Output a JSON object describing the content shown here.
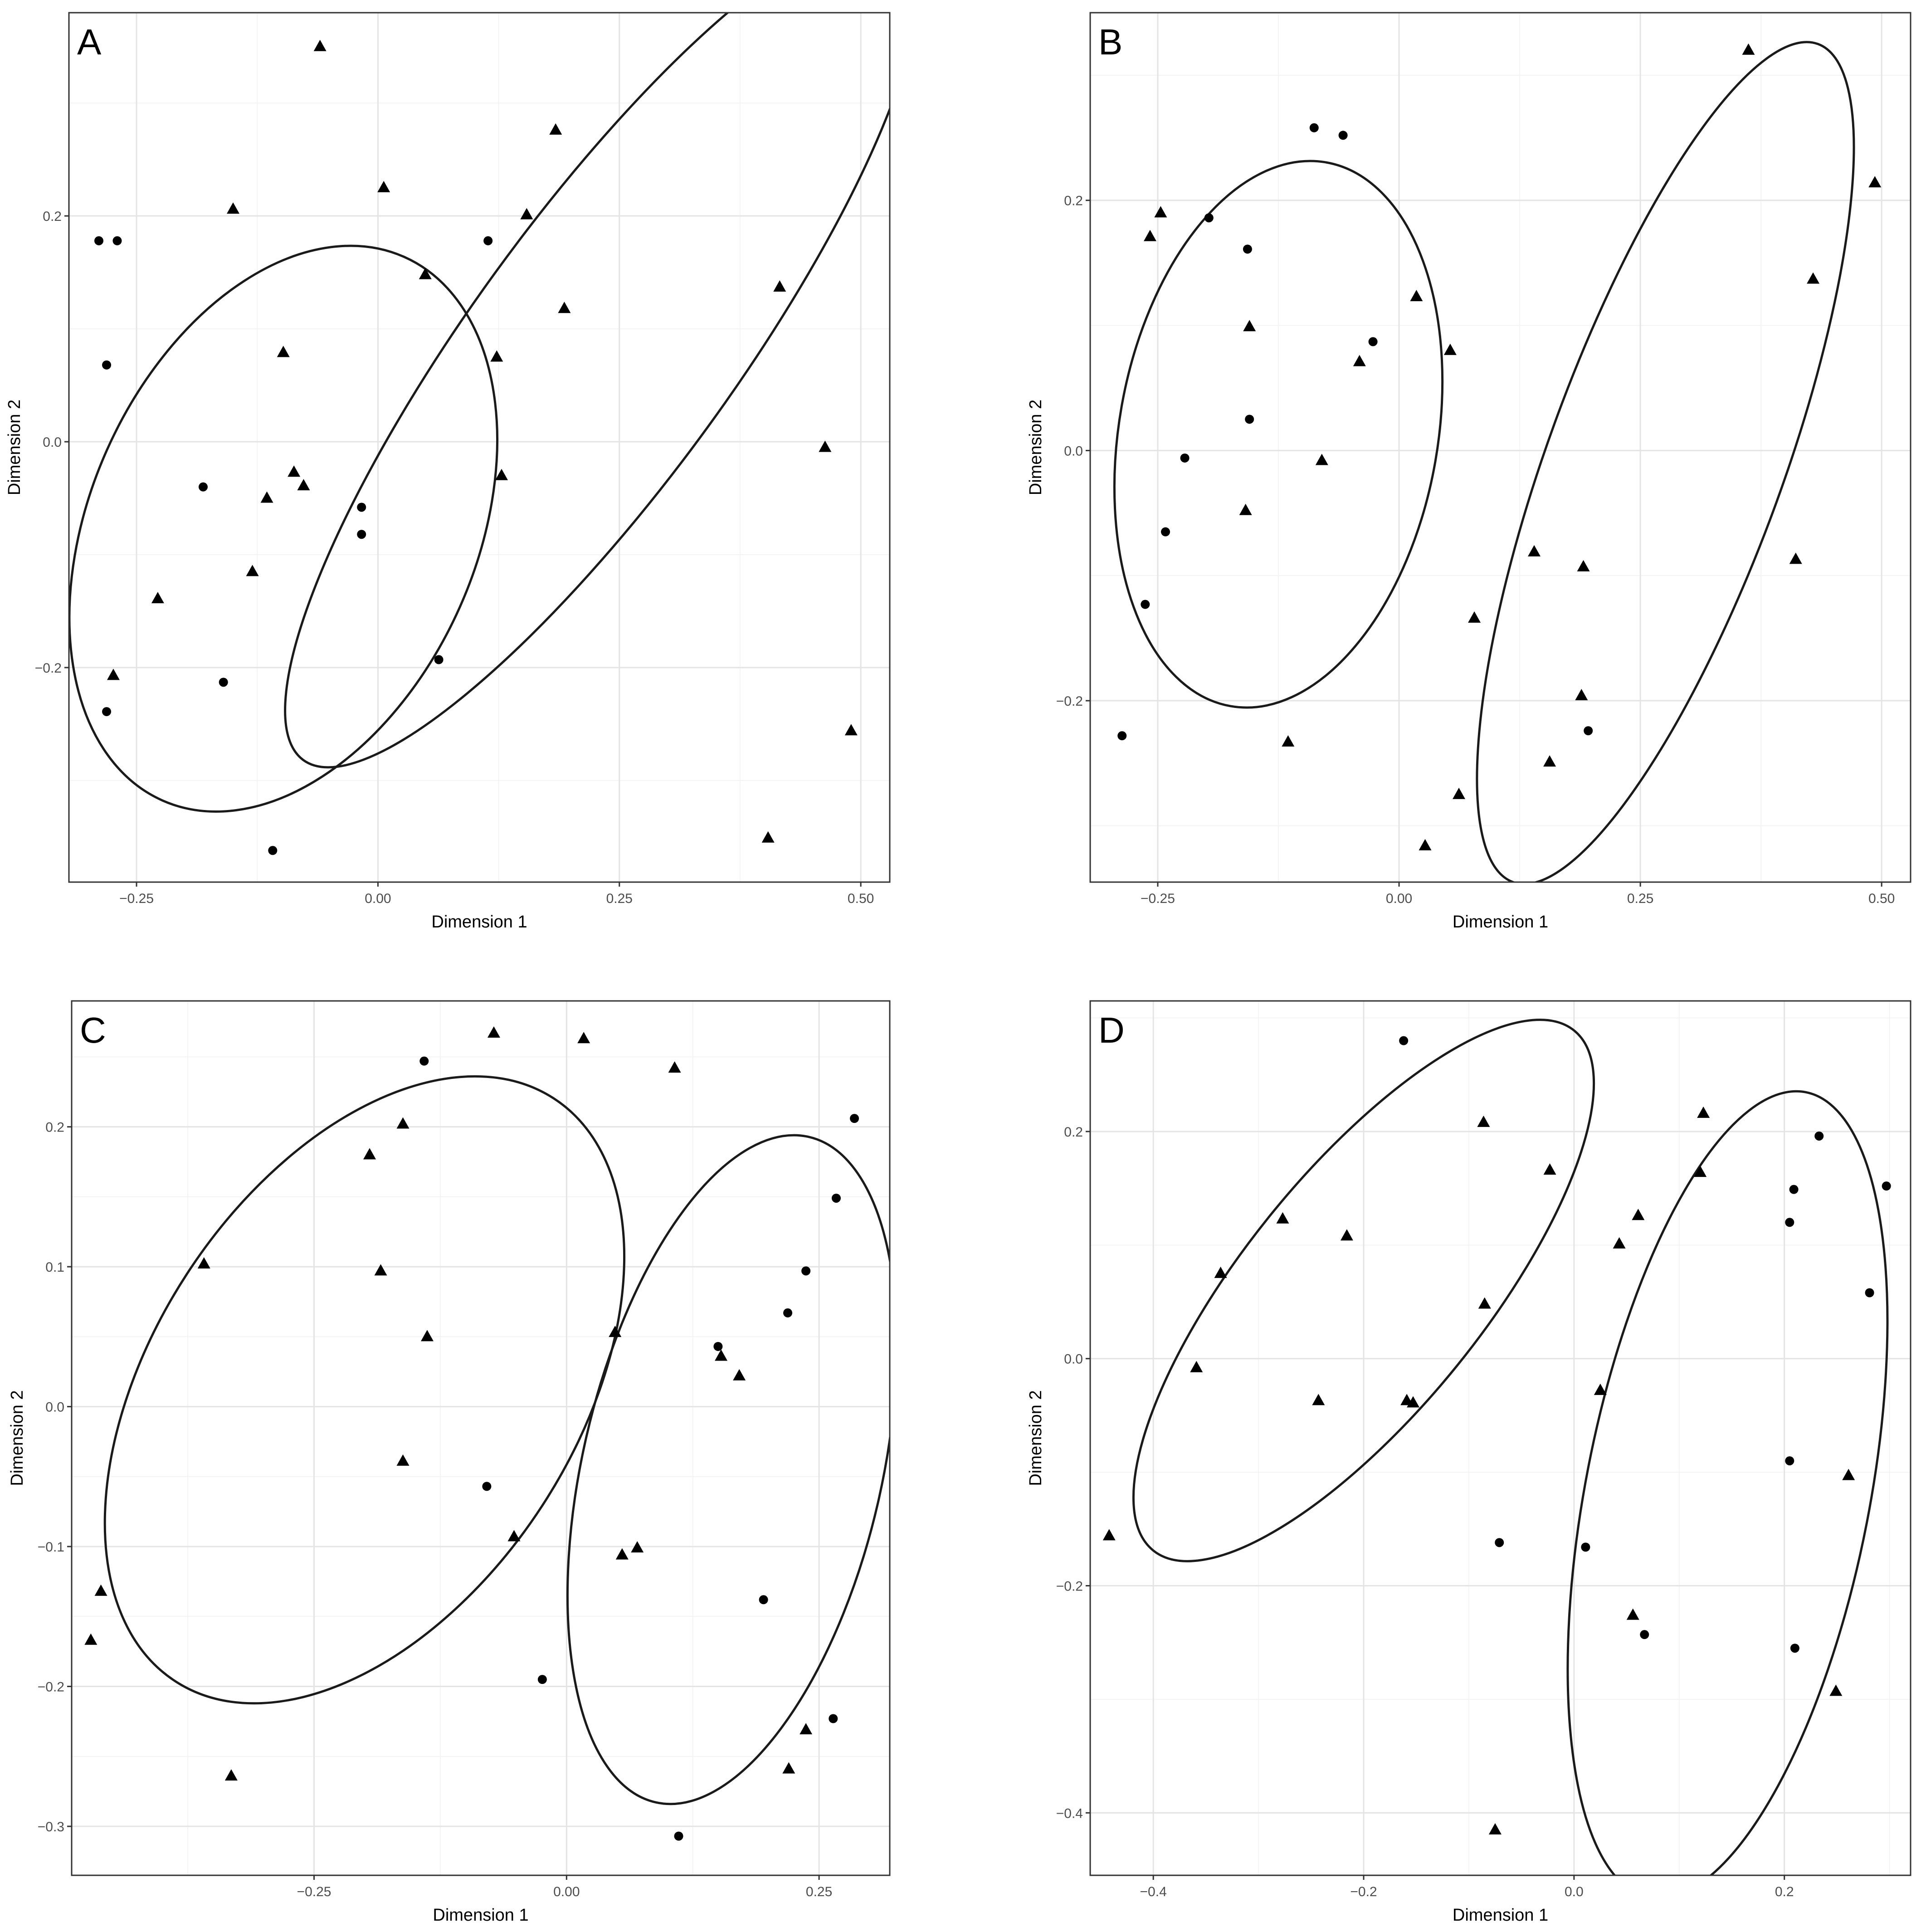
{
  "colors": {
    "ink": "#000000",
    "grid": "#e4e4e4",
    "tick_text": "#4d4d4d"
  },
  "chart_data": [
    {
      "panel": "A",
      "type": "scatter",
      "xlabel": "Dimension 1",
      "ylabel": "Dimension 2",
      "xlim": [
        -0.32,
        0.53
      ],
      "ylim": [
        -0.39,
        0.38
      ],
      "xticks": [
        -0.25,
        0.0,
        0.25,
        0.5
      ],
      "xtick_labels": [
        "−0.25",
        "0.00",
        "0.25",
        "0.50"
      ],
      "yticks": [
        -0.2,
        0.0,
        0.2
      ],
      "ytick_labels": [
        "−0.2",
        "0.0",
        "0.2"
      ],
      "grid": true,
      "points": {
        "circle": [
          [
            -0.289,
            0.178
          ],
          [
            -0.27,
            0.178
          ],
          [
            -0.281,
            0.068
          ],
          [
            -0.181,
            -0.04
          ],
          [
            -0.017,
            -0.058
          ],
          [
            -0.017,
            -0.082
          ],
          [
            0.063,
            -0.193
          ],
          [
            -0.16,
            -0.213
          ],
          [
            -0.281,
            -0.239
          ],
          [
            -0.109,
            -0.362
          ],
          [
            0.114,
            0.178
          ]
        ],
        "triangle": [
          [
            -0.06,
            0.35
          ],
          [
            -0.15,
            0.206
          ],
          [
            0.006,
            0.225
          ],
          [
            0.184,
            0.276
          ],
          [
            0.154,
            0.201
          ],
          [
            0.049,
            0.148
          ],
          [
            0.193,
            0.118
          ],
          [
            0.416,
            0.137
          ],
          [
            0.123,
            0.075
          ],
          [
            -0.098,
            0.079
          ],
          [
            0.128,
            -0.03
          ],
          [
            -0.087,
            -0.027
          ],
          [
            -0.077,
            -0.039
          ],
          [
            -0.115,
            -0.05
          ],
          [
            -0.13,
            -0.115
          ],
          [
            -0.228,
            -0.139
          ],
          [
            -0.274,
            -0.207
          ],
          [
            0.463,
            -0.005
          ],
          [
            0.49,
            -0.256
          ],
          [
            0.404,
            -0.351
          ]
        ]
      },
      "ellipses": [
        {
          "cx": -0.098,
          "cy": -0.077,
          "rx": 0.308,
          "ry": 0.2,
          "angle": -66
        },
        {
          "cx": 0.232,
          "cy": 0.082,
          "rx": 0.526,
          "ry": 0.136,
          "angle": -54
        }
      ]
    },
    {
      "panel": "B",
      "type": "scatter",
      "xlabel": "Dimension 1",
      "ylabel": "Dimension 2",
      "xlim": [
        -0.32,
        0.53
      ],
      "ylim": [
        -0.345,
        0.35
      ],
      "xticks": [
        -0.25,
        0.0,
        0.25,
        0.5
      ],
      "xtick_labels": [
        "−0.25",
        "0.00",
        "0.25",
        "0.50"
      ],
      "yticks": [
        -0.2,
        0.0,
        0.2
      ],
      "ytick_labels": [
        "−0.2",
        "0.0",
        "0.2"
      ],
      "grid": true,
      "points": {
        "circle": [
          [
            -0.088,
            0.258
          ],
          [
            -0.058,
            0.252
          ],
          [
            -0.197,
            0.186
          ],
          [
            -0.157,
            0.161
          ],
          [
            -0.027,
            0.087
          ],
          [
            -0.155,
            0.025
          ],
          [
            -0.222,
            -0.006
          ],
          [
            -0.242,
            -0.065
          ],
          [
            -0.263,
            -0.123
          ],
          [
            -0.287,
            -0.228
          ],
          [
            0.196,
            -0.224
          ]
        ],
        "triangle": [
          [
            -0.247,
            0.19
          ],
          [
            -0.258,
            0.171
          ],
          [
            0.018,
            0.123
          ],
          [
            -0.155,
            0.099
          ],
          [
            0.053,
            0.08
          ],
          [
            -0.041,
            0.071
          ],
          [
            -0.08,
            -0.008
          ],
          [
            -0.159,
            -0.048
          ],
          [
            -0.115,
            -0.233
          ],
          [
            0.362,
            0.32
          ],
          [
            0.493,
            0.214
          ],
          [
            0.429,
            0.137
          ],
          [
            0.14,
            -0.081
          ],
          [
            0.191,
            -0.093
          ],
          [
            0.078,
            -0.134
          ],
          [
            0.411,
            -0.087
          ],
          [
            0.189,
            -0.196
          ],
          [
            0.156,
            -0.249
          ],
          [
            0.062,
            -0.275
          ],
          [
            0.027,
            -0.316
          ]
        ]
      },
      "ellipses": [
        {
          "cx": -0.125,
          "cy": 0.013,
          "rx": 0.286,
          "ry": 0.165,
          "angle": -80
        },
        {
          "cx": 0.276,
          "cy": -0.01,
          "rx": 0.462,
          "ry": 0.122,
          "angle": -70
        }
      ]
    },
    {
      "panel": "C",
      "type": "scatter",
      "xlabel": "Dimension 1",
      "ylabel": "Dimension 2",
      "xlim": [
        -0.49,
        0.32
      ],
      "ylim": [
        -0.335,
        0.29
      ],
      "xticks": [
        -0.25,
        0.0,
        0.25
      ],
      "xtick_labels": [
        "−0.25",
        "0.00",
        "0.25"
      ],
      "yticks": [
        -0.3,
        -0.2,
        -0.1,
        0.0,
        0.1,
        0.2
      ],
      "ytick_labels": [
        "−0.3",
        "−0.2",
        "−0.1",
        "0.0",
        "0.1",
        "0.2"
      ],
      "grid": true,
      "points": {
        "circle": [
          [
            -0.141,
            0.247
          ],
          [
            0.285,
            0.206
          ],
          [
            0.267,
            0.149
          ],
          [
            0.237,
            0.097
          ],
          [
            0.219,
            0.067
          ],
          [
            0.15,
            0.043
          ],
          [
            -0.079,
            -0.057
          ],
          [
            0.195,
            -0.138
          ],
          [
            -0.024,
            -0.195
          ],
          [
            0.264,
            -0.223
          ],
          [
            0.111,
            -0.307
          ]
        ],
        "triangle": [
          [
            -0.072,
            0.267
          ],
          [
            0.017,
            0.263
          ],
          [
            0.107,
            0.242
          ],
          [
            -0.162,
            0.202
          ],
          [
            -0.195,
            0.18
          ],
          [
            -0.184,
            0.097
          ],
          [
            -0.359,
            0.102
          ],
          [
            -0.138,
            0.05
          ],
          [
            0.048,
            0.053
          ],
          [
            0.153,
            0.036
          ],
          [
            0.171,
            0.022
          ],
          [
            -0.162,
            -0.039
          ],
          [
            -0.052,
            -0.093
          ],
          [
            0.055,
            -0.106
          ],
          [
            0.07,
            -0.101
          ],
          [
            -0.461,
            -0.132
          ],
          [
            -0.471,
            -0.167
          ],
          [
            -0.332,
            -0.264
          ],
          [
            0.237,
            -0.231
          ],
          [
            0.22,
            -0.259
          ]
        ]
      },
      "ellipses": [
        {
          "cx": -0.2,
          "cy": 0.012,
          "rx": 0.344,
          "ry": 0.21,
          "angle": -57
        },
        {
          "cx": 0.164,
          "cy": -0.045,
          "rx": 0.338,
          "ry": 0.148,
          "angle": -77
        }
      ]
    },
    {
      "panel": "D",
      "type": "scatter",
      "xlabel": "Dimension 1",
      "ylabel": "Dimension 2",
      "xlim": [
        -0.46,
        0.32
      ],
      "ylim": [
        -0.455,
        0.315
      ],
      "xticks": [
        -0.4,
        -0.2,
        0.0,
        0.2
      ],
      "xtick_labels": [
        "−0.4",
        "−0.2",
        "0.0",
        "0.2"
      ],
      "yticks": [
        -0.4,
        -0.2,
        0.0,
        0.2
      ],
      "ytick_labels": [
        "−0.4",
        "−0.2",
        "0.0",
        "0.2"
      ],
      "grid": true,
      "points": {
        "circle": [
          [
            -0.162,
            0.28
          ],
          [
            0.233,
            0.196
          ],
          [
            0.209,
            0.149
          ],
          [
            0.297,
            0.152
          ],
          [
            0.205,
            0.12
          ],
          [
            0.281,
            0.058
          ],
          [
            0.205,
            -0.09
          ],
          [
            -0.071,
            -0.162
          ],
          [
            0.011,
            -0.166
          ],
          [
            0.067,
            -0.243
          ],
          [
            0.21,
            -0.255
          ]
        ],
        "triangle": [
          [
            -0.086,
            0.208
          ],
          [
            0.123,
            0.216
          ],
          [
            -0.023,
            0.166
          ],
          [
            0.12,
            0.164
          ],
          [
            -0.277,
            0.123
          ],
          [
            -0.216,
            0.108
          ],
          [
            0.061,
            0.126
          ],
          [
            0.043,
            0.101
          ],
          [
            -0.336,
            0.075
          ],
          [
            -0.085,
            0.048
          ],
          [
            -0.359,
            -0.008
          ],
          [
            0.025,
            -0.028
          ],
          [
            -0.243,
            -0.037
          ],
          [
            -0.159,
            -0.037
          ],
          [
            -0.153,
            -0.039
          ],
          [
            0.261,
            -0.103
          ],
          [
            -0.442,
            -0.156
          ],
          [
            0.056,
            -0.226
          ],
          [
            0.249,
            -0.293
          ],
          [
            -0.075,
            -0.415
          ]
        ]
      },
      "ellipses": [
        {
          "cx": -0.2,
          "cy": 0.06,
          "rx": 0.318,
          "ry": 0.114,
          "angle": -51
        },
        {
          "cx": 0.146,
          "cy": -0.12,
          "rx": 0.39,
          "ry": 0.135,
          "angle": -79
        }
      ]
    }
  ]
}
